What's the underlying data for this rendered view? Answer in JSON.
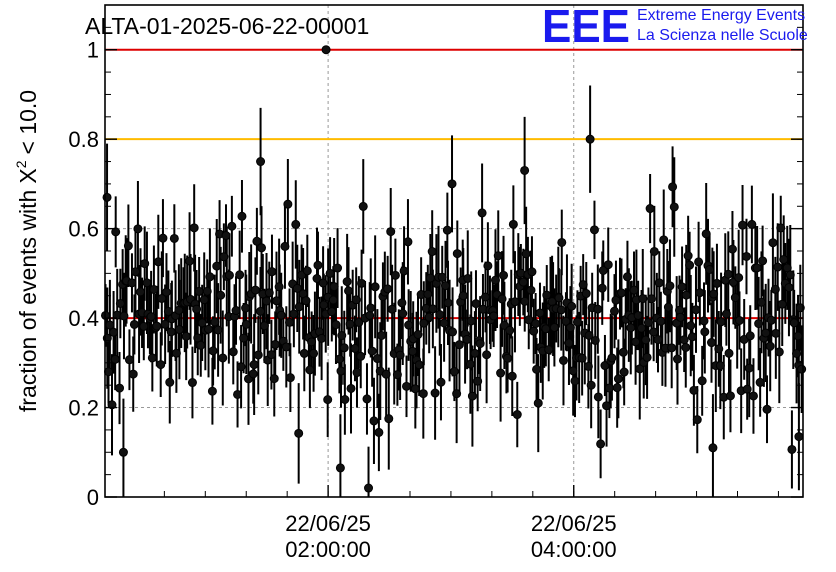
{
  "chart_data": {
    "type": "scatter",
    "title": "ALTA-01-2025-06-22-00001",
    "xlabel": "",
    "ylabel": "fraction of events with",
    "ylabel_math": {
      "symbol": "X",
      "superscript": "2",
      "relation": "< 10.0"
    },
    "x_ticks": [
      {
        "x": "2025-06-22T02:00:00",
        "line1": "22/06/25",
        "line2": "02:00:00"
      },
      {
        "x": "2025-06-22T04:00:00",
        "line1": "22/06/25",
        "line2": "04:00:00"
      }
    ],
    "xlim": [
      "2025-06-22T00:11:00",
      "2025-06-22T05:52:00"
    ],
    "y_ticks": [
      "0",
      "0.2",
      "0.4",
      "0.6",
      "0.8",
      "1"
    ],
    "ylim": [
      0,
      1.1
    ],
    "grid": true,
    "reference_lines": [
      {
        "y": 1.0,
        "color": "#dd0000"
      },
      {
        "y": 0.8,
        "color": "#ffbb00"
      },
      {
        "y": 0.4,
        "color": "#dd0000"
      }
    ],
    "series": [
      {
        "marker_color": "#111111",
        "x_start": "2025-06-22T00:11:00",
        "x_end": "2025-06-22T05:52:00",
        "approx_points": 460,
        "mean_y": 0.4,
        "highlighted_points": [
          {
            "x": "2025-06-22T01:59:00",
            "y": 1.0
          },
          {
            "x": "2025-06-22T04:08:00",
            "y": 0.8
          },
          {
            "x": "2025-06-22T00:20:00",
            "y": 0.1
          },
          {
            "x": "2025-06-22T02:06:00",
            "y": 0.065
          },
          {
            "x": "2025-06-22T01:27:00",
            "y": 0.75
          },
          {
            "x": "2025-06-22T03:36:00",
            "y": 0.73
          },
          {
            "x": "2025-06-22T05:08:00",
            "y": 0.11
          },
          {
            "x": "2025-06-22T05:50:00",
            "y": 0.135
          },
          {
            "x": "2025-06-22T00:12:00",
            "y": 0.67
          }
        ]
      }
    ]
  },
  "logo": {
    "mark": "EEE",
    "line1": "Extreme Energy Events",
    "line2": "La Scienza nelle Scuole",
    "color": "#1a1aee"
  }
}
